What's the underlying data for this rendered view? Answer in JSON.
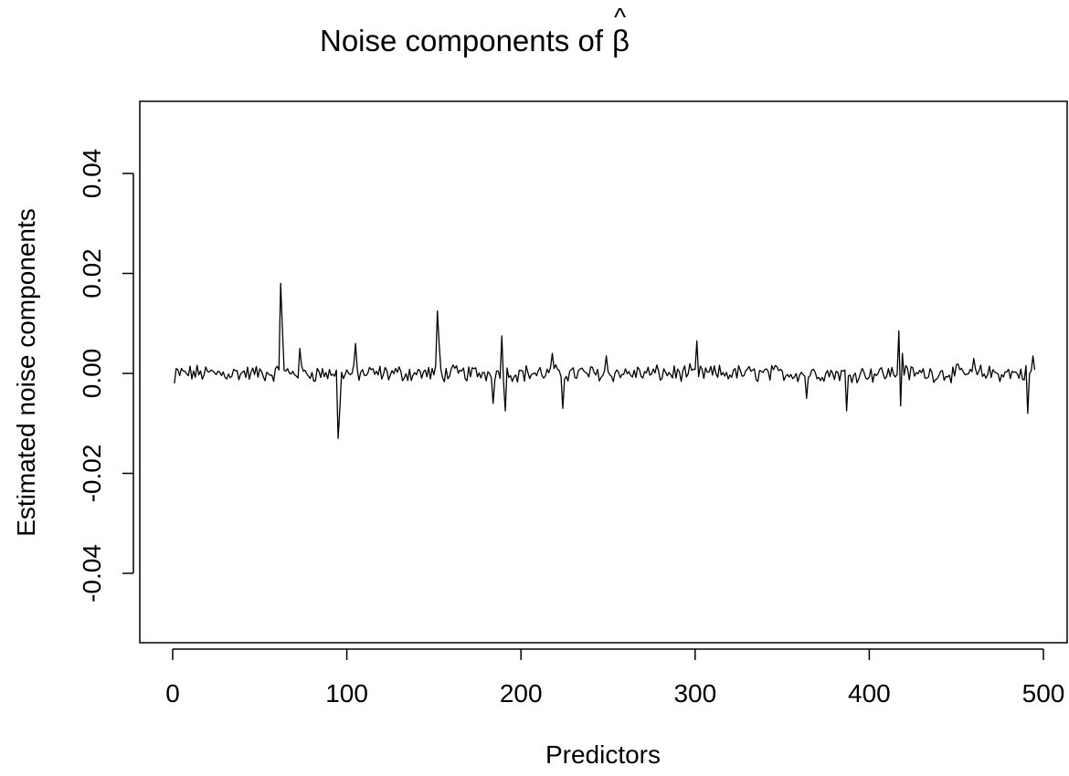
{
  "chart_data": {
    "type": "line",
    "title": "Noise components of β̂",
    "title_prefix": "Noise components of",
    "title_symbol": "β",
    "title_accent": "^",
    "xlabel": "Predictors",
    "ylabel": "Estimated noise components",
    "xlim": [
      0,
      500
    ],
    "ylim": [
      -0.05,
      0.05
    ],
    "x_ticks": [
      0,
      100,
      200,
      300,
      400,
      500
    ],
    "x_tick_labels": [
      "0",
      "100",
      "200",
      "300",
      "400",
      "500"
    ],
    "y_ticks": [
      -0.04,
      -0.02,
      0.0,
      0.02,
      0.04
    ],
    "y_tick_labels": [
      "-0.04",
      "-0.02",
      "0.00",
      "0.02",
      "0.04"
    ],
    "grid": false,
    "line_color": "#000000",
    "n_points": 495,
    "spikes": [
      {
        "x": 62,
        "y": 0.018
      },
      {
        "x": 63,
        "y": 0.009
      },
      {
        "x": 73,
        "y": 0.005
      },
      {
        "x": 95,
        "y": -0.013
      },
      {
        "x": 96,
        "y": -0.007
      },
      {
        "x": 105,
        "y": 0.006
      },
      {
        "x": 152,
        "y": 0.0125
      },
      {
        "x": 153,
        "y": 0.006
      },
      {
        "x": 184,
        "y": -0.006
      },
      {
        "x": 189,
        "y": 0.0075
      },
      {
        "x": 191,
        "y": -0.0075
      },
      {
        "x": 218,
        "y": 0.004
      },
      {
        "x": 224,
        "y": -0.007
      },
      {
        "x": 249,
        "y": 0.0035
      },
      {
        "x": 301,
        "y": 0.0065
      },
      {
        "x": 364,
        "y": -0.005
      },
      {
        "x": 387,
        "y": -0.0075
      },
      {
        "x": 417,
        "y": 0.0085
      },
      {
        "x": 418,
        "y": -0.0065
      },
      {
        "x": 419,
        "y": 0.004
      },
      {
        "x": 460,
        "y": 0.003
      },
      {
        "x": 491,
        "y": -0.008
      },
      {
        "x": 494,
        "y": 0.0035
      }
    ]
  }
}
